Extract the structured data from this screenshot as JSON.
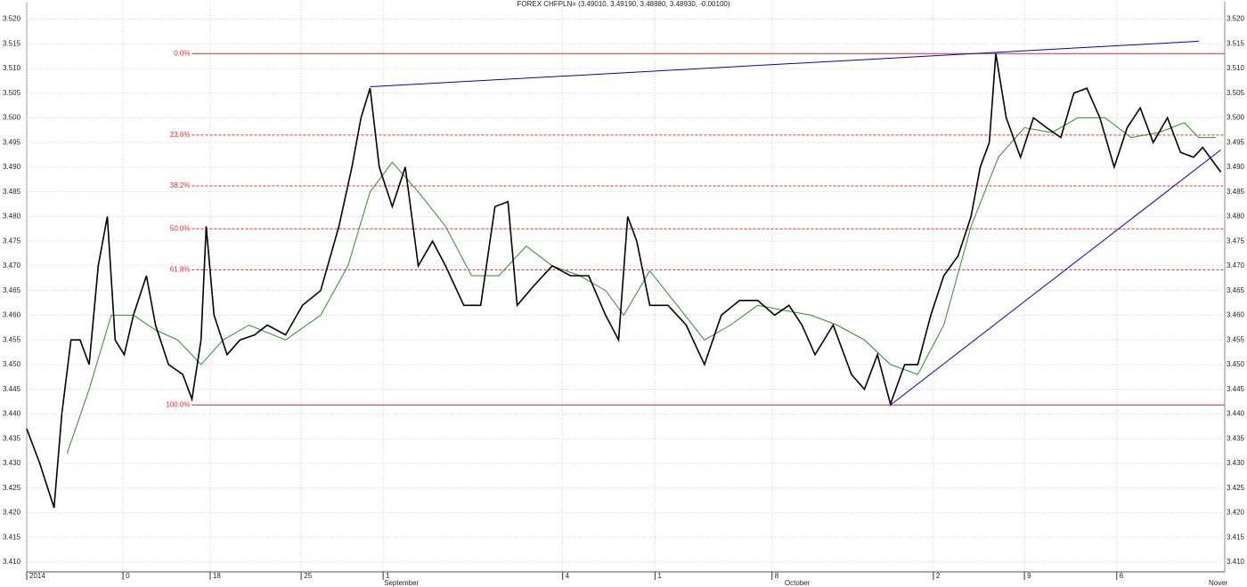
{
  "chart_data": {
    "type": "line",
    "title": "FOREX CHFPLN= (3.49010, 3.49190, 3.48880, 3.48930, -0.00100)",
    "xlim": [
      0,
      92.1
    ],
    "ylim": [
      3.408,
      3.5235
    ],
    "grid": true,
    "yticks": [
      {
        "value": 3.41,
        "label": "3.410"
      },
      {
        "value": 3.415,
        "label": "3.415"
      },
      {
        "value": 3.42,
        "label": "3.420"
      },
      {
        "value": 3.425,
        "label": "3.425"
      },
      {
        "value": 3.43,
        "label": "3.430"
      },
      {
        "value": 3.435,
        "label": "3.435"
      },
      {
        "value": 3.44,
        "label": "3.440"
      },
      {
        "value": 3.445,
        "label": "3.445"
      },
      {
        "value": 3.45,
        "label": "3.450"
      },
      {
        "value": 3.455,
        "label": "3.455"
      },
      {
        "value": 3.46,
        "label": "3.460"
      },
      {
        "value": 3.465,
        "label": "3.465"
      },
      {
        "value": 3.47,
        "label": "3.470"
      },
      {
        "value": 3.475,
        "label": "3.475"
      },
      {
        "value": 3.48,
        "label": "3.480"
      },
      {
        "value": 3.485,
        "label": "3.485"
      },
      {
        "value": 3.49,
        "label": "3.490"
      },
      {
        "value": 3.495,
        "label": "3.495"
      },
      {
        "value": 3.5,
        "label": "3.500"
      },
      {
        "value": 3.505,
        "label": "3.505"
      },
      {
        "value": 3.51,
        "label": "3.510"
      },
      {
        "value": 3.515,
        "label": "3.515"
      },
      {
        "value": 3.52,
        "label": "3.520"
      }
    ],
    "xticks": [
      {
        "value": 0,
        "label": "2014"
      },
      {
        "value": 7.4,
        "label": "0"
      },
      {
        "value": 14.1,
        "label": "18"
      },
      {
        "value": 21.1,
        "label": "25"
      },
      {
        "value": 27.4,
        "label": "1"
      },
      {
        "value": 41.2,
        "label": "4"
      },
      {
        "value": 48.3,
        "label": "1"
      },
      {
        "value": 57.3,
        "label": "8"
      },
      {
        "value": 69.7,
        "label": "2"
      },
      {
        "value": 76.7,
        "label": "9"
      },
      {
        "value": 83.8,
        "label": "6"
      }
    ],
    "month_labels": [
      {
        "value": 27.4,
        "label": "September"
      },
      {
        "value": 58.2,
        "label": "October"
      },
      {
        "value": 90.8,
        "label": "Nover"
      }
    ],
    "series": [
      {
        "color": "#000000",
        "x": [
          0,
          1.0,
          2.1,
          2.7,
          3.4,
          4.1,
          4.8,
          5.5,
          6.2,
          6.8,
          7.5,
          8.2,
          9.2,
          9.9,
          10.9,
          12.0,
          12.7,
          13.4,
          13.8,
          14.4,
          15.4,
          16.4,
          17.5,
          18.5,
          19.9,
          21.2,
          22.6,
          24.0,
          25.0,
          25.7,
          26.4,
          27.1,
          28.1,
          29.1,
          30.1,
          31.2,
          32.2,
          33.6,
          34.9,
          36.0,
          37.0,
          37.7,
          39.0,
          40.4,
          41.8,
          43.2,
          44.5,
          45.5,
          46.2,
          46.9,
          47.9,
          49.3,
          50.7,
          52.1,
          53.4,
          54.8,
          56.2,
          57.5,
          58.6,
          59.6,
          60.6,
          62.0,
          63.4,
          64.4,
          65.4,
          66.4,
          67.5,
          68.5,
          69.5,
          70.5,
          71.6,
          72.6,
          73.3,
          74.0,
          74.5,
          75.3,
          76.4,
          77.4,
          78.4,
          79.5,
          80.5,
          81.5,
          82.5,
          83.6,
          84.6,
          85.6,
          86.6,
          87.7,
          88.7,
          89.7,
          90.4,
          91.8
        ],
        "values": [
          3.437,
          3.43,
          3.421,
          3.44,
          3.455,
          3.455,
          3.45,
          3.47,
          3.48,
          3.455,
          3.452,
          3.46,
          3.468,
          3.458,
          3.45,
          3.448,
          3.443,
          3.455,
          3.478,
          3.46,
          3.452,
          3.455,
          3.456,
          3.458,
          3.456,
          3.462,
          3.465,
          3.478,
          3.49,
          3.5,
          3.506,
          3.49,
          3.482,
          3.49,
          3.47,
          3.475,
          3.47,
          3.462,
          3.462,
          3.482,
          3.483,
          3.462,
          3.466,
          3.47,
          3.468,
          3.468,
          3.46,
          3.455,
          3.48,
          3.475,
          3.462,
          3.462,
          3.458,
          3.45,
          3.46,
          3.463,
          3.463,
          3.46,
          3.462,
          3.458,
          3.452,
          3.458,
          3.448,
          3.445,
          3.452,
          3.442,
          3.45,
          3.45,
          3.46,
          3.468,
          3.472,
          3.48,
          3.49,
          3.495,
          3.513,
          3.5,
          3.492,
          3.5,
          3.498,
          3.496,
          3.505,
          3.506,
          3.5,
          3.49,
          3.498,
          3.502,
          3.495,
          3.5,
          3.493,
          3.492,
          3.494,
          3.489
        ]
      },
      {
        "color": "#2e8b2e",
        "x": [
          3.1,
          4.8,
          6.5,
          8.2,
          9.9,
          11.6,
          13.4,
          15.1,
          17.1,
          19.9,
          22.6,
          24.7,
          26.4,
          28.1,
          30.1,
          32.2,
          34.2,
          36.3,
          38.4,
          40.4,
          42.5,
          44.5,
          45.9,
          47.9,
          50.0,
          52.1,
          54.1,
          56.2,
          58.2,
          60.3,
          62.3,
          64.4,
          66.4,
          68.5,
          70.5,
          72.6,
          74.7,
          76.7,
          78.8,
          80.8,
          82.9,
          84.9,
          87.0,
          89.0,
          90.1,
          91.4
        ],
        "values": [
          3.432,
          3.445,
          3.46,
          3.46,
          3.457,
          3.455,
          3.45,
          3.455,
          3.458,
          3.455,
          3.46,
          3.47,
          3.485,
          3.491,
          3.485,
          3.478,
          3.468,
          3.468,
          3.474,
          3.47,
          3.468,
          3.465,
          3.46,
          3.469,
          3.462,
          3.455,
          3.458,
          3.462,
          3.461,
          3.46,
          3.458,
          3.455,
          3.45,
          3.448,
          3.458,
          3.478,
          3.492,
          3.498,
          3.497,
          3.5,
          3.5,
          3.496,
          3.497,
          3.499,
          3.496,
          3.496
        ]
      }
    ],
    "trend_lines": [
      {
        "color": "#0000cc",
        "x": [
          26.4,
          90.1
        ],
        "values": [
          3.5063,
          3.5155
        ]
      },
      {
        "color": "#0000cc",
        "x": [
          66.4,
          91.8
        ],
        "values": [
          3.4418,
          3.4935
        ]
      }
    ],
    "fib_start": 12.7,
    "fib_color": "#e8262a",
    "fib_levels": [
      {
        "label": "0.0%",
        "value": 3.513
      },
      {
        "label": "23.6%",
        "value": 3.4965
      },
      {
        "label": "38.2%",
        "value": 3.4862
      },
      {
        "label": "50.0%",
        "value": 3.4775
      },
      {
        "label": "61.8%",
        "value": 3.4692
      },
      {
        "label": "100.0%",
        "value": 3.4418
      }
    ]
  }
}
